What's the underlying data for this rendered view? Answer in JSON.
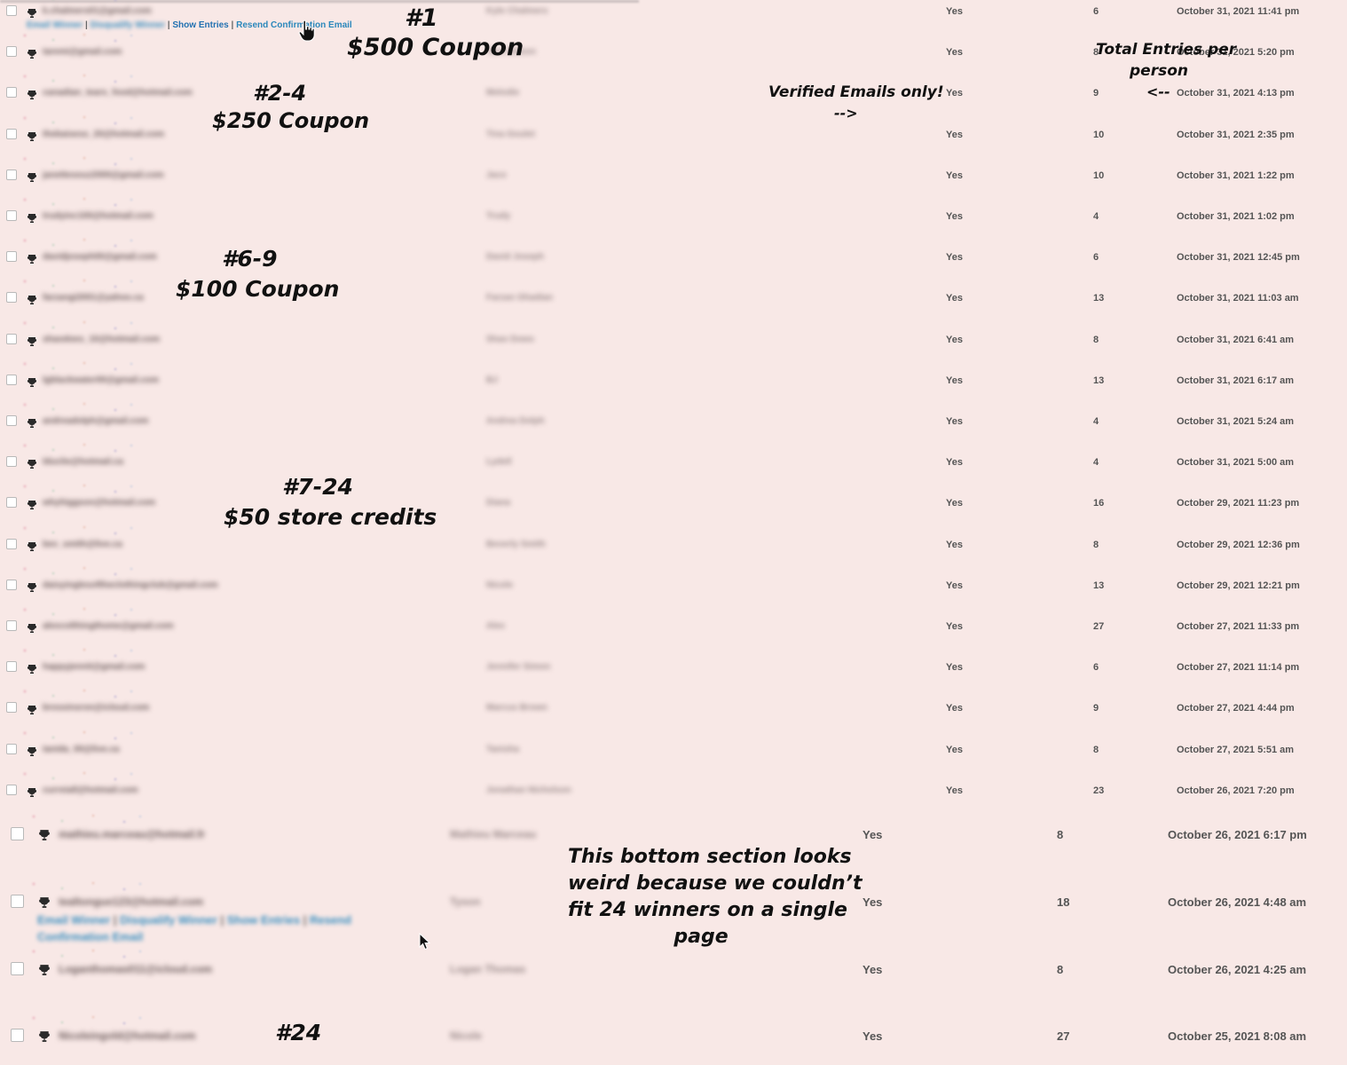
{
  "entries": [
    {
      "email": "k.chalmers01@gmail.com",
      "name": "Kyle Chalmers",
      "verified": "Yes",
      "entries": "6",
      "date": "October 31, 2021 11:41 pm"
    },
    {
      "email": "taremi@gmail.com",
      "name": "Tara Wilson",
      "verified": "Yes",
      "entries": "8",
      "date": "October 31, 2021 5:20 pm"
    },
    {
      "email": "canadian_tears_food@hotmail.com",
      "name": "Melodie",
      "verified": "Yes",
      "entries": "9",
      "date": "October 31, 2021 4:13 pm"
    },
    {
      "email": "thebaisess_20@hotmail.com",
      "name": "Tina Goulet",
      "verified": "Yes",
      "entries": "10",
      "date": "October 31, 2021 2:35 pm"
    },
    {
      "email": "janettesouz2000@gmail.com",
      "name": "Jaco",
      "verified": "Yes",
      "entries": "10",
      "date": "October 31, 2021 1:22 pm"
    },
    {
      "email": "trudyinc100@hotmail.com",
      "name": "Trudy",
      "verified": "Yes",
      "entries": "4",
      "date": "October 31, 2021 1:02 pm"
    },
    {
      "email": "davidjoseph00@gmail.com",
      "name": "David Joseph",
      "verified": "Yes",
      "entries": "6",
      "date": "October 31, 2021 12:45 pm"
    },
    {
      "email": "farzangi2001@yahoo.ca",
      "name": "Farzan Ghadian",
      "verified": "Yes",
      "entries": "13",
      "date": "October 31, 2021 11:03 am"
    },
    {
      "email": "shaodoes_10@hotmail.com",
      "name": "Shao Dows",
      "verified": "Yes",
      "entries": "8",
      "date": "October 31, 2021 6:41 am"
    },
    {
      "email": "lgblackwater00@gmail.com",
      "name": "BJ",
      "verified": "Yes",
      "entries": "13",
      "date": "October 31, 2021 6:17 am"
    },
    {
      "email": "andreadolph@gmail.com",
      "name": "Andrea Dolph",
      "verified": "Yes",
      "entries": "4",
      "date": "October 31, 2021 5:24 am"
    },
    {
      "email": "lduclie@hotmail.ca",
      "name": "Lydell",
      "verified": "Yes",
      "entries": "4",
      "date": "October 31, 2021 5:00 am"
    },
    {
      "email": "whyhiggson@hotmail.com",
      "name": "Diana",
      "verified": "Yes",
      "entries": "16",
      "date": "October 29, 2021 11:23 pm"
    },
    {
      "email": "bev_smith@live.ca",
      "name": "Beverly Smith",
      "verified": "Yes",
      "entries": "8",
      "date": "October 29, 2021 12:36 pm"
    },
    {
      "email": "daisyinglesoftheclothingclub@gmail.com",
      "name": "Nicole",
      "verified": "Yes",
      "entries": "13",
      "date": "October 29, 2021 12:21 pm"
    },
    {
      "email": "alexcolthingthome@gmail.com",
      "name": "Alex",
      "verified": "Yes",
      "entries": "27",
      "date": "October 27, 2021 11:33 pm"
    },
    {
      "email": "happyjennit@gmail.com",
      "name": "Jennifer Simon",
      "verified": "Yes",
      "entries": "6",
      "date": "October 27, 2021 11:14 pm"
    },
    {
      "email": "brossinsron@icloud.com",
      "name": "Marcus Brown",
      "verified": "Yes",
      "entries": "9",
      "date": "October 27, 2021 4:44 pm"
    },
    {
      "email": "tanida_00@live.ca",
      "name": "Tanisha",
      "verified": "Yes",
      "entries": "8",
      "date": "October 27, 2021 5:51 am"
    },
    {
      "email": "curreiall@hotmail.com",
      "name": "Jonathan Nicholson",
      "verified": "Yes",
      "entries": "23",
      "date": "October 26, 2021 7:20 pm"
    }
  ],
  "bottom_entries": [
    {
      "email": "mathieu.marceau@hotmail.fr",
      "name": "Mathieu Marceau",
      "verified": "Yes",
      "entries": "8",
      "date": "October 26, 2021 6:17 pm"
    },
    {
      "email": "tealtongue123@hotmail.com",
      "name": "Tyson",
      "verified": "Yes",
      "entries": "18",
      "date": "October 26, 2021 4:48 am"
    },
    {
      "email": "Loganthomas011@icloud.com",
      "name": "Logan Thomas",
      "verified": "Yes",
      "entries": "8",
      "date": "October 26, 2021 4:25 am"
    },
    {
      "email": "Nicoleingold@hotmail.com",
      "name": "Nicole",
      "verified": "Yes",
      "entries": "27",
      "date": "October 25, 2021 8:08 am"
    }
  ],
  "row_actions": {
    "email_winner": "Email Winner",
    "disqualify_winner": "Disqualify Winner",
    "show_entries": "Show Entries",
    "resend_confirmation": "Resend Confirmation Email",
    "resend": "Resend",
    "confirmation_email": "Confirmation Email",
    "separator": "|"
  },
  "annotations": {
    "first_rank": "#1",
    "first_prize": "$500 Coupon",
    "second_rank": "#2-4",
    "second_prize": "$250 Coupon",
    "third_rank": "#6-9",
    "third_prize": "$100 Coupon",
    "fourth_rank": "#7-24",
    "fourth_prize": "$50 store credits",
    "verified_note": "Verified Emails only!",
    "verified_arrow": "-->",
    "total_line1": "Total Entries per",
    "total_line2": "person",
    "total_arrow": "<--",
    "bottom_line1": "This bottom section looks",
    "bottom_line2": "weird because we couldn’t",
    "bottom_line3": "fit 24 winners on a single",
    "bottom_line4": "page",
    "last_rank": "#24"
  },
  "colors": {
    "background": "#f8e8e6",
    "link": "#2a87bb",
    "annotation": "#111111"
  },
  "icons": {
    "row_icon": "trophy-icon",
    "pointer": "hand-pointer-cursor",
    "arrow": "arrow-cursor"
  }
}
